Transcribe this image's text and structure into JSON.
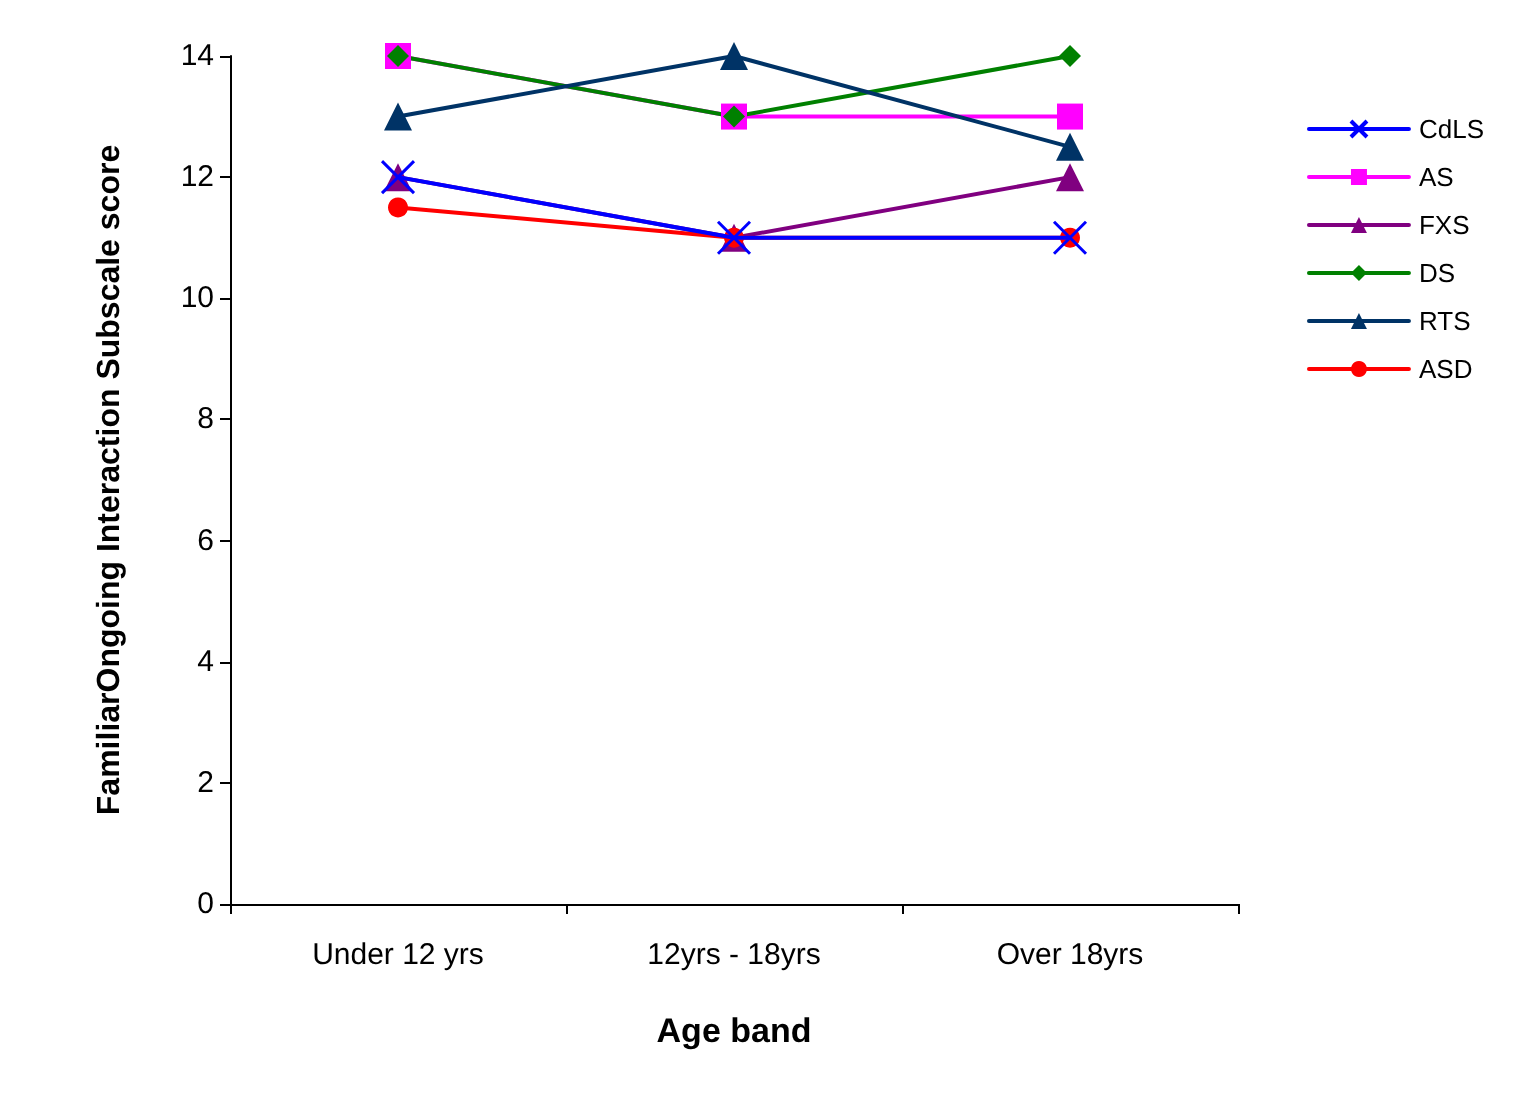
{
  "chart_data": {
    "type": "line",
    "xlabel": "Age band",
    "ylabel": "FamiliarOngoing Interaction Subscale score",
    "categories": [
      "Under 12 yrs",
      "12yrs - 18yrs",
      "Over 18yrs"
    ],
    "ylim": [
      0,
      14
    ],
    "yticks": [
      0,
      2,
      4,
      6,
      8,
      10,
      12,
      14
    ],
    "grid": false,
    "legend": "right",
    "line_style": "solid",
    "series": [
      {
        "name": "CdLS",
        "color": "#0000ff",
        "marker": "cross",
        "values": [
          12,
          11,
          11
        ]
      },
      {
        "name": "AS",
        "color": "#ff00ff",
        "marker": "square",
        "values": [
          14,
          13,
          13
        ]
      },
      {
        "name": "FXS",
        "color": "#800080",
        "marker": "triangle",
        "values": [
          12,
          11,
          12
        ]
      },
      {
        "name": "DS",
        "color": "#008000",
        "marker": "diamond",
        "values": [
          14,
          13,
          14
        ]
      },
      {
        "name": "RTS",
        "color": "#003366",
        "marker": "triangle",
        "values": [
          13,
          14,
          12.5
        ]
      },
      {
        "name": "ASD",
        "color": "#ff0000",
        "marker": "circle",
        "values": [
          11.5,
          11,
          11
        ]
      }
    ]
  }
}
